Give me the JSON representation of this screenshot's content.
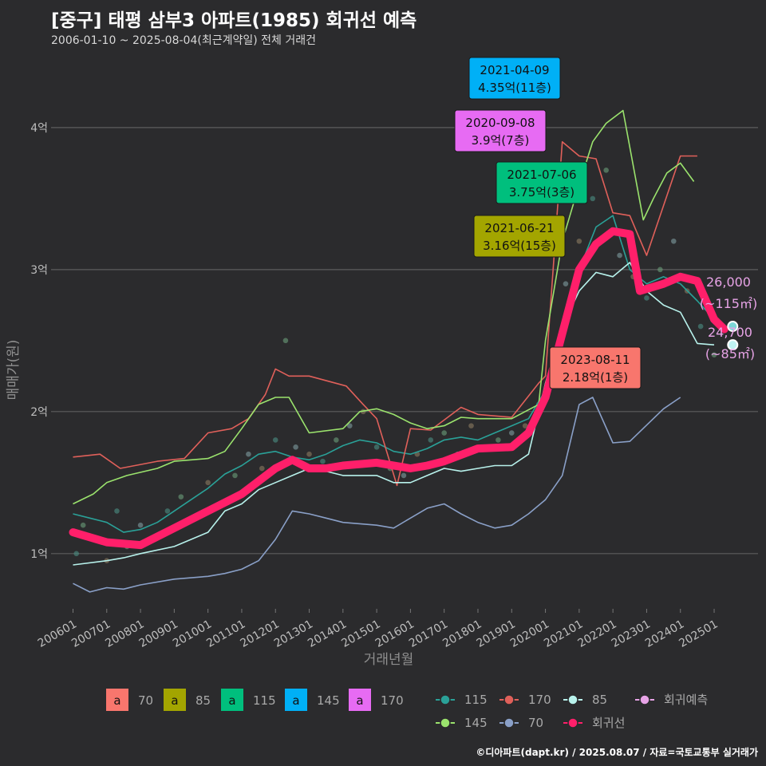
{
  "header": {
    "title": "[중구] 태평 삼부3 아파트(1985) 회귀선 예측",
    "subtitle": "2006-01-10 ~ 2025-08-04(최근계약일) 전체 거래건"
  },
  "footer": "©디아파트(dapt.kr) / 2025.08.07 / 자료=국토교통부 실거래가",
  "colors": {
    "70": "#f8766d",
    "85": "#a3a500",
    "115": "#00bf7d",
    "145": "#00b0f6",
    "170": "#e76bf3",
    "line115": "#2aa198",
    "line170": "#e0605a",
    "line85": "#b8f2ec",
    "line145": "#9be36d",
    "line70": "#8aa0c8",
    "regression": "#ff1f6a",
    "forecast": "#e7a3e6"
  },
  "chart_data": {
    "type": "line",
    "xlabel": "거래년월",
    "ylabel": "매매가(원)",
    "ylim": [
      0.6,
      4.55
    ],
    "y_unit": "억",
    "yticks": [
      {
        "value": 1,
        "label": "1억"
      },
      {
        "value": 2,
        "label": "2억"
      },
      {
        "value": 3,
        "label": "3억"
      },
      {
        "value": 4,
        "label": "4억"
      }
    ],
    "xticks": [
      "200601",
      "200701",
      "200801",
      "200901",
      "201001",
      "201101",
      "201201",
      "201301",
      "201401",
      "201501",
      "201601",
      "201701",
      "201801",
      "201901",
      "202001",
      "202101",
      "202201",
      "202301",
      "202401",
      "202501"
    ],
    "grid": true,
    "series": [
      {
        "name": "115",
        "color_key": "line115",
        "points": [
          [
            2006.0,
            1.28
          ],
          [
            2006.5,
            1.25
          ],
          [
            2007.0,
            1.22
          ],
          [
            2007.5,
            1.15
          ],
          [
            2008.0,
            1.17
          ],
          [
            2008.5,
            1.22
          ],
          [
            2009.0,
            1.3
          ],
          [
            2009.5,
            1.38
          ],
          [
            2010.0,
            1.46
          ],
          [
            2010.5,
            1.56
          ],
          [
            2011.0,
            1.62
          ],
          [
            2011.5,
            1.7
          ],
          [
            2012.0,
            1.72
          ],
          [
            2012.5,
            1.68
          ],
          [
            2013.0,
            1.66
          ],
          [
            2013.5,
            1.7
          ],
          [
            2014.0,
            1.76
          ],
          [
            2014.5,
            1.8
          ],
          [
            2015.0,
            1.78
          ],
          [
            2015.5,
            1.72
          ],
          [
            2016.0,
            1.7
          ],
          [
            2016.5,
            1.74
          ],
          [
            2017.0,
            1.8
          ],
          [
            2017.5,
            1.82
          ],
          [
            2018.0,
            1.8
          ],
          [
            2018.5,
            1.85
          ],
          [
            2019.0,
            1.9
          ],
          [
            2019.5,
            1.95
          ],
          [
            2020.0,
            2.15
          ],
          [
            2020.5,
            2.6
          ],
          [
            2021.0,
            3.0
          ],
          [
            2021.5,
            3.3
          ],
          [
            2022.0,
            3.38
          ],
          [
            2022.5,
            3.0
          ],
          [
            2023.0,
            2.9
          ],
          [
            2023.5,
            2.95
          ],
          [
            2024.0,
            2.9
          ],
          [
            2024.5,
            2.78
          ],
          [
            2025.0,
            2.65
          ]
        ]
      },
      {
        "name": "170",
        "color_key": "line170",
        "points": [
          [
            2006.0,
            1.68
          ],
          [
            2006.8,
            1.7
          ],
          [
            2007.4,
            1.6
          ],
          [
            2008.5,
            1.65
          ],
          [
            2009.3,
            1.67
          ],
          [
            2010.0,
            1.85
          ],
          [
            2010.7,
            1.88
          ],
          [
            2011.2,
            1.95
          ],
          [
            2011.7,
            2.12
          ],
          [
            2012.0,
            2.3
          ],
          [
            2012.4,
            2.25
          ],
          [
            2013.0,
            2.25
          ],
          [
            2014.1,
            2.18
          ],
          [
            2014.6,
            2.05
          ],
          [
            2015.0,
            1.95
          ],
          [
            2015.6,
            1.48
          ],
          [
            2016.0,
            1.88
          ],
          [
            2016.6,
            1.87
          ],
          [
            2017.5,
            2.03
          ],
          [
            2018.0,
            1.98
          ],
          [
            2019.0,
            1.96
          ],
          [
            2019.8,
            2.2
          ],
          [
            2020.0,
            2.25
          ],
          [
            2020.5,
            3.9
          ],
          [
            2021.0,
            3.8
          ],
          [
            2021.5,
            3.78
          ],
          [
            2022.0,
            3.4
          ],
          [
            2022.5,
            3.38
          ],
          [
            2023.0,
            3.1
          ],
          [
            2024.0,
            3.8
          ],
          [
            2024.5,
            3.8
          ]
        ]
      },
      {
        "name": "85",
        "color_key": "line85",
        "points": [
          [
            2006.0,
            0.92
          ],
          [
            2007.0,
            0.95
          ],
          [
            2007.5,
            0.97
          ],
          [
            2008.0,
            1.0
          ],
          [
            2009.0,
            1.05
          ],
          [
            2010.0,
            1.15
          ],
          [
            2010.5,
            1.3
          ],
          [
            2011.0,
            1.35
          ],
          [
            2011.5,
            1.45
          ],
          [
            2012.0,
            1.5
          ],
          [
            2012.5,
            1.55
          ],
          [
            2013.0,
            1.6
          ],
          [
            2013.5,
            1.58
          ],
          [
            2014.0,
            1.55
          ],
          [
            2015.0,
            1.55
          ],
          [
            2015.5,
            1.5
          ],
          [
            2016.0,
            1.5
          ],
          [
            2016.5,
            1.55
          ],
          [
            2017.0,
            1.6
          ],
          [
            2017.5,
            1.58
          ],
          [
            2018.0,
            1.6
          ],
          [
            2018.5,
            1.62
          ],
          [
            2019.0,
            1.62
          ],
          [
            2019.5,
            1.7
          ],
          [
            2020.0,
            2.2
          ],
          [
            2020.5,
            2.6
          ],
          [
            2021.0,
            2.85
          ],
          [
            2021.5,
            2.98
          ],
          [
            2022.0,
            2.95
          ],
          [
            2022.5,
            3.05
          ],
          [
            2023.0,
            2.85
          ],
          [
            2023.5,
            2.75
          ],
          [
            2024.0,
            2.7
          ],
          [
            2024.5,
            2.48
          ],
          [
            2025.0,
            2.47
          ]
        ]
      },
      {
        "name": "145",
        "color_key": "line145",
        "points": [
          [
            2006.0,
            1.35
          ],
          [
            2006.6,
            1.42
          ],
          [
            2007.0,
            1.5
          ],
          [
            2007.6,
            1.55
          ],
          [
            2008.5,
            1.6
          ],
          [
            2009.0,
            1.65
          ],
          [
            2010.0,
            1.67
          ],
          [
            2010.5,
            1.72
          ],
          [
            2011.0,
            1.88
          ],
          [
            2011.5,
            2.05
          ],
          [
            2012.0,
            2.1
          ],
          [
            2012.4,
            2.1
          ],
          [
            2013.0,
            1.85
          ],
          [
            2014.0,
            1.88
          ],
          [
            2014.5,
            2.0
          ],
          [
            2015.0,
            2.02
          ],
          [
            2015.5,
            1.98
          ],
          [
            2016.0,
            1.92
          ],
          [
            2016.5,
            1.88
          ],
          [
            2017.0,
            1.9
          ],
          [
            2017.5,
            1.96
          ],
          [
            2018.0,
            1.95
          ],
          [
            2019.0,
            1.95
          ],
          [
            2019.8,
            2.05
          ],
          [
            2020.0,
            2.5
          ],
          [
            2020.5,
            3.2
          ],
          [
            2021.0,
            3.6
          ],
          [
            2021.4,
            3.9
          ],
          [
            2021.8,
            4.03
          ],
          [
            2022.3,
            4.12
          ],
          [
            2022.9,
            3.35
          ],
          [
            2023.2,
            3.5
          ],
          [
            2023.6,
            3.68
          ],
          [
            2024.0,
            3.75
          ],
          [
            2024.4,
            3.62
          ]
        ]
      },
      {
        "name": "70",
        "color_key": "line70",
        "points": [
          [
            2006.0,
            0.79
          ],
          [
            2006.5,
            0.73
          ],
          [
            2007.0,
            0.76
          ],
          [
            2007.5,
            0.75
          ],
          [
            2008.0,
            0.78
          ],
          [
            2009.0,
            0.82
          ],
          [
            2010.0,
            0.84
          ],
          [
            2010.5,
            0.86
          ],
          [
            2011.0,
            0.89
          ],
          [
            2011.5,
            0.95
          ],
          [
            2012.0,
            1.1
          ],
          [
            2012.5,
            1.3
          ],
          [
            2013.0,
            1.28
          ],
          [
            2013.5,
            1.25
          ],
          [
            2014.0,
            1.22
          ],
          [
            2015.0,
            1.2
          ],
          [
            2015.5,
            1.18
          ],
          [
            2016.0,
            1.25
          ],
          [
            2016.5,
            1.32
          ],
          [
            2017.0,
            1.35
          ],
          [
            2017.5,
            1.28
          ],
          [
            2018.0,
            1.22
          ],
          [
            2018.5,
            1.18
          ],
          [
            2019.0,
            1.2
          ],
          [
            2019.5,
            1.28
          ],
          [
            2020.0,
            1.38
          ],
          [
            2020.5,
            1.55
          ],
          [
            2021.0,
            2.05
          ],
          [
            2021.4,
            2.1
          ],
          [
            2022.0,
            1.78
          ],
          [
            2022.5,
            1.79
          ],
          [
            2023.5,
            2.02
          ],
          [
            2024.0,
            2.1
          ]
        ]
      }
    ],
    "regression": {
      "name": "회귀선",
      "color_key": "regression",
      "points": [
        [
          2006.0,
          1.15
        ],
        [
          2007.0,
          1.08
        ],
        [
          2008.0,
          1.06
        ],
        [
          2009.0,
          1.18
        ],
        [
          2010.0,
          1.3
        ],
        [
          2011.0,
          1.42
        ],
        [
          2012.0,
          1.6
        ],
        [
          2012.5,
          1.66
        ],
        [
          2013.0,
          1.6
        ],
        [
          2013.5,
          1.6
        ],
        [
          2014.0,
          1.62
        ],
        [
          2015.0,
          1.64
        ],
        [
          2016.0,
          1.6
        ],
        [
          2016.5,
          1.62
        ],
        [
          2017.0,
          1.65
        ],
        [
          2018.0,
          1.74
        ],
        [
          2019.0,
          1.75
        ],
        [
          2019.5,
          1.85
        ],
        [
          2020.0,
          2.1
        ],
        [
          2020.5,
          2.55
        ],
        [
          2021.0,
          3.0
        ],
        [
          2021.5,
          3.18
        ],
        [
          2022.0,
          3.27
        ],
        [
          2022.5,
          3.25
        ],
        [
          2022.8,
          2.85
        ],
        [
          2023.5,
          2.9
        ],
        [
          2024.0,
          2.95
        ],
        [
          2024.5,
          2.92
        ],
        [
          2025.0,
          2.65
        ],
        [
          2025.3,
          2.58
        ]
      ]
    },
    "points": [
      [
        2006.1,
        1.0
      ],
      [
        2006.3,
        1.2
      ],
      [
        2006.6,
        1.1
      ],
      [
        2007.0,
        0.95
      ],
      [
        2007.3,
        1.3
      ],
      [
        2007.6,
        1.05
      ],
      [
        2008.0,
        1.2
      ],
      [
        2008.4,
        1.1
      ],
      [
        2008.8,
        1.3
      ],
      [
        2009.2,
        1.4
      ],
      [
        2009.6,
        1.25
      ],
      [
        2010.0,
        1.5
      ],
      [
        2010.4,
        1.35
      ],
      [
        2010.8,
        1.55
      ],
      [
        2011.2,
        1.7
      ],
      [
        2011.6,
        1.6
      ],
      [
        2012.0,
        1.8
      ],
      [
        2012.3,
        2.5
      ],
      [
        2012.6,
        1.75
      ],
      [
        2013.0,
        1.7
      ],
      [
        2013.4,
        1.65
      ],
      [
        2013.8,
        1.8
      ],
      [
        2014.2,
        1.9
      ],
      [
        2014.6,
        2.0
      ],
      [
        2015.0,
        1.75
      ],
      [
        2015.4,
        1.6
      ],
      [
        2015.8,
        1.55
      ],
      [
        2016.2,
        1.7
      ],
      [
        2016.6,
        1.8
      ],
      [
        2017.0,
        1.85
      ],
      [
        2017.4,
        1.7
      ],
      [
        2017.8,
        1.9
      ],
      [
        2018.2,
        1.75
      ],
      [
        2018.6,
        1.8
      ],
      [
        2019.0,
        1.85
      ],
      [
        2019.4,
        1.9
      ],
      [
        2019.8,
        2.05
      ],
      [
        2020.2,
        2.4
      ],
      [
        2020.6,
        2.9
      ],
      [
        2021.0,
        3.2
      ],
      [
        2021.4,
        3.5
      ],
      [
        2021.8,
        3.7
      ],
      [
        2022.2,
        3.1
      ],
      [
        2022.6,
        2.95
      ],
      [
        2023.0,
        2.8
      ],
      [
        2023.4,
        3.0
      ],
      [
        2023.8,
        3.2
      ],
      [
        2024.2,
        2.85
      ],
      [
        2024.6,
        2.6
      ],
      [
        2025.0,
        2.4
      ]
    ],
    "annotations": [
      {
        "date": "2021-04-09",
        "price": "4.35억(11층)",
        "size": "145",
        "x": 2021.3,
        "y": 4.35
      },
      {
        "date": "2020-09-08",
        "price": "3.9억(7층)",
        "size": "170",
        "x": 2020.7,
        "y": 3.9
      },
      {
        "date": "2021-07-06",
        "price": "3.75억(3층)",
        "size": "115",
        "x": 2021.5,
        "y": 3.75
      },
      {
        "date": "2021-06-21",
        "price": "3.16억(15층)",
        "size": "85",
        "x": 2021.5,
        "y": 3.16
      },
      {
        "date": "2023-08-11",
        "price": "2.18억(1층)",
        "size": "70",
        "x": 2023.6,
        "y": 2.18
      }
    ],
    "forecast": [
      {
        "value_label": "26,000",
        "area_label": "(~115㎡)",
        "x": 2025.55,
        "y": 2.6
      },
      {
        "value_label": "24,700",
        "area_label": "(~85㎡)",
        "x": 2025.55,
        "y": 2.47
      }
    ],
    "legend_fill": [
      {
        "label": "70",
        "color_key": "70"
      },
      {
        "label": "85",
        "color_key": "85"
      },
      {
        "label": "115",
        "color_key": "115"
      },
      {
        "label": "145",
        "color_key": "145"
      },
      {
        "label": "170",
        "color_key": "170"
      }
    ],
    "legend_fill_glyph": "a",
    "legend_line": [
      {
        "label": "115",
        "color_key": "line115"
      },
      {
        "label": "170",
        "color_key": "line170"
      },
      {
        "label": "85",
        "color_key": "line85"
      },
      {
        "label": "회귀예측",
        "color_key": "forecast"
      },
      {
        "label": "145",
        "color_key": "line145"
      },
      {
        "label": "70",
        "color_key": "line70"
      },
      {
        "label": "회귀선",
        "color_key": "regression"
      }
    ]
  }
}
